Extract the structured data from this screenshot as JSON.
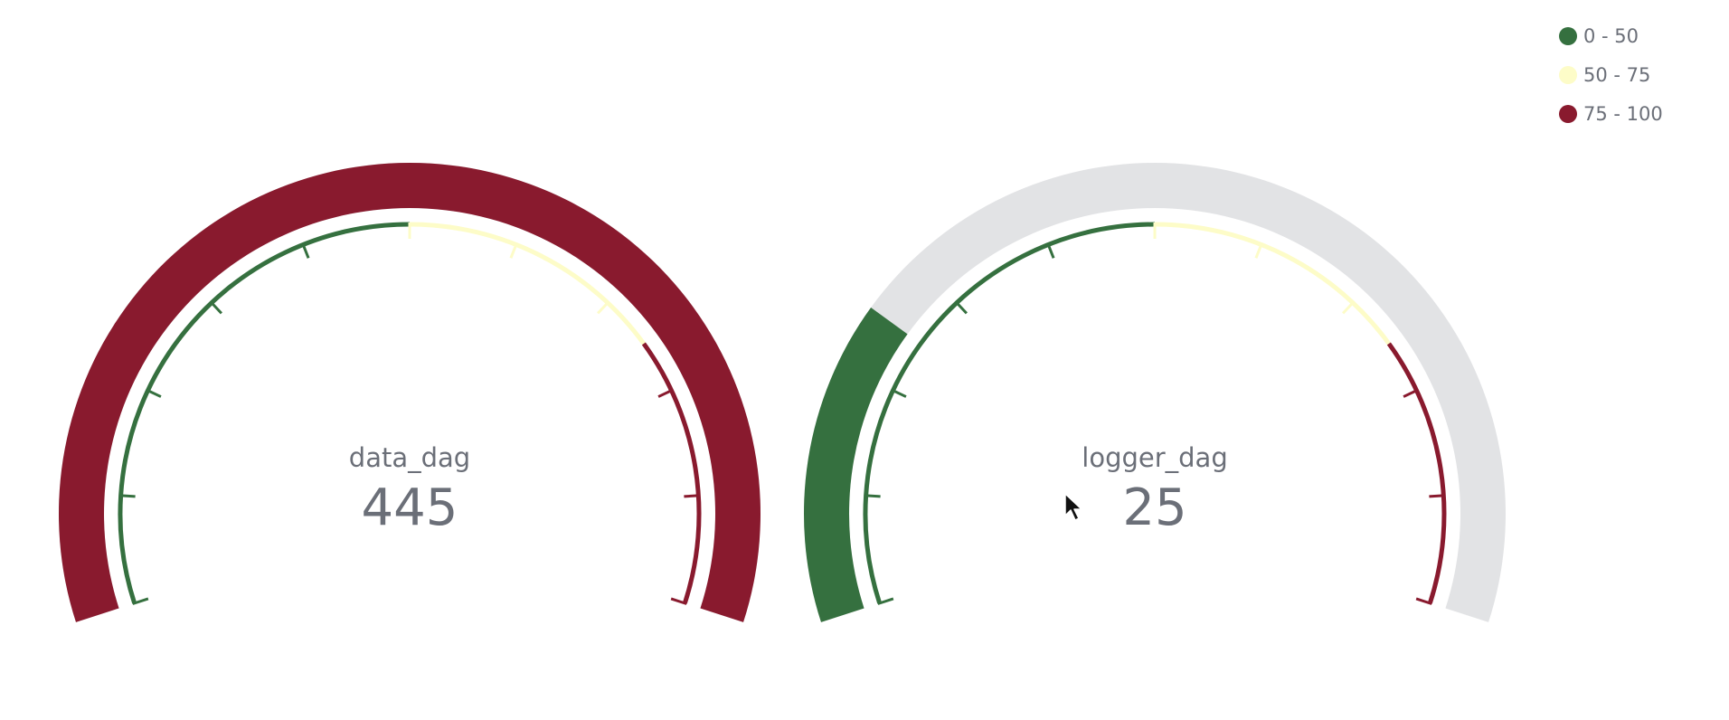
{
  "legend": [
    {
      "label": "0 - 50",
      "color": "#35703f"
    },
    {
      "label": "50 - 75",
      "color": "#fdfcc8"
    },
    {
      "label": "75 - 100",
      "color": "#891a2e"
    }
  ],
  "colors": {
    "track": "#e2e3e5",
    "text": "#6b6f78"
  },
  "chart_data": [
    {
      "type": "gauge",
      "title": "data_dag",
      "value": 445,
      "value_label": "445",
      "range": [
        0,
        100
      ],
      "bands": [
        {
          "from": 0,
          "to": 50,
          "color": "#35703f"
        },
        {
          "from": 50,
          "to": 75,
          "color": "#fdfcc8"
        },
        {
          "from": 75,
          "to": 100,
          "color": "#891a2e"
        }
      ]
    },
    {
      "type": "gauge",
      "title": "logger_dag",
      "value": 25,
      "value_label": "25",
      "range": [
        0,
        100
      ],
      "bands": [
        {
          "from": 0,
          "to": 50,
          "color": "#35703f"
        },
        {
          "from": 50,
          "to": 75,
          "color": "#fdfcc8"
        },
        {
          "from": 75,
          "to": 100,
          "color": "#891a2e"
        }
      ]
    }
  ]
}
